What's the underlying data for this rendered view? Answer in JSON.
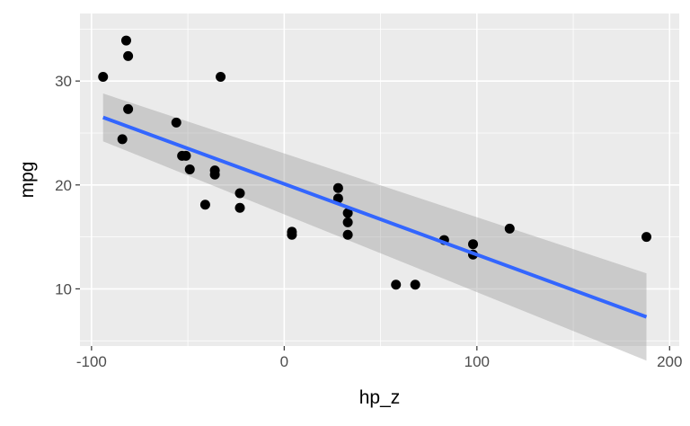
{
  "chart_data": {
    "type": "scatter",
    "title": "",
    "xlabel": "hp_z",
    "ylabel": "mpg",
    "xlim": [
      -106,
      205
    ],
    "ylim": [
      4.5,
      36.5
    ],
    "x_ticks": [
      -100,
      0,
      100,
      200
    ],
    "x_tick_labels": [
      "-100",
      "0",
      "100",
      "200"
    ],
    "y_ticks": [
      10,
      20,
      30
    ],
    "y_tick_labels": [
      "10",
      "20",
      "30"
    ],
    "grid": true,
    "legend": "none",
    "points": [
      {
        "x": -94,
        "y": 30.4
      },
      {
        "x": -82,
        "y": 33.9
      },
      {
        "x": -81,
        "y": 32.4
      },
      {
        "x": -81,
        "y": 27.3
      },
      {
        "x": -33,
        "y": 30.4
      },
      {
        "x": -56,
        "y": 26.0
      },
      {
        "x": -84,
        "y": 24.4
      },
      {
        "x": -53,
        "y": 22.8
      },
      {
        "x": -51,
        "y": 22.8
      },
      {
        "x": -49,
        "y": 21.5
      },
      {
        "x": -36,
        "y": 21.4
      },
      {
        "x": -36,
        "y": 21.0
      },
      {
        "x": -41,
        "y": 18.1
      },
      {
        "x": -23,
        "y": 19.2
      },
      {
        "x": -23,
        "y": 17.8
      },
      {
        "x": 4,
        "y": 15.5
      },
      {
        "x": 4,
        "y": 15.2
      },
      {
        "x": 28,
        "y": 19.7
      },
      {
        "x": 28,
        "y": 18.7
      },
      {
        "x": 33,
        "y": 17.3
      },
      {
        "x": 33,
        "y": 16.4
      },
      {
        "x": 33,
        "y": 15.2
      },
      {
        "x": 58,
        "y": 10.4
      },
      {
        "x": 68,
        "y": 10.4
      },
      {
        "x": 83,
        "y": 14.7
      },
      {
        "x": 98,
        "y": 14.3
      },
      {
        "x": 98,
        "y": 13.3
      },
      {
        "x": 117,
        "y": 15.8
      },
      {
        "x": 188,
        "y": 15.0
      }
    ],
    "fit": {
      "x": [
        -94,
        188
      ],
      "y": [
        26.5,
        7.3
      ],
      "ci_lower": [
        24.2,
        3.1
      ],
      "ci_upper": [
        28.8,
        11.5
      ]
    },
    "colors": {
      "panel": "#ebebeb",
      "grid_major": "#ffffff",
      "point": "#000000",
      "line": "#3366ff",
      "ribbon": "#999999"
    }
  }
}
